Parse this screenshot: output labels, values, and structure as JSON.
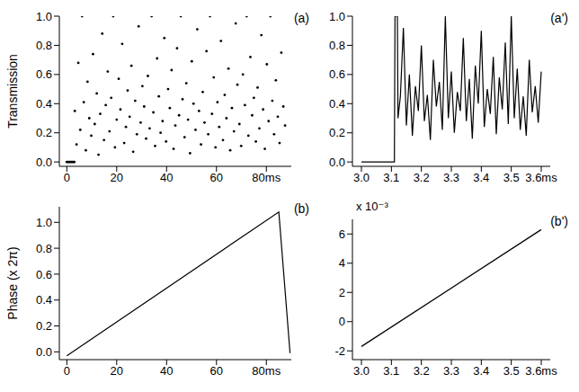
{
  "chart_data": [
    {
      "type": "scatter",
      "title": "(a)",
      "y_label": "Transmission",
      "color": "#000000",
      "marker": "dot",
      "grid": false,
      "xlim": [
        -3,
        90
      ],
      "xticks": [
        0,
        20,
        40,
        60,
        {
          "value": 80,
          "label": "80ms"
        }
      ],
      "ylim": [
        -0.03,
        1.0
      ],
      "yticks": [
        {
          "value": 0,
          "label": "0.0"
        },
        {
          "value": 0.2,
          "label": "0.2"
        },
        {
          "value": 0.4,
          "label": "0.4"
        },
        {
          "value": 0.6,
          "label": "0.6"
        },
        {
          "value": 0.8,
          "label": "0.8"
        },
        {
          "value": 1.0,
          "label": "1.0"
        }
      ],
      "x": [
        0,
        0.5,
        1,
        1.5,
        2,
        2.5,
        3,
        3.2,
        3.9,
        4.6,
        5.4,
        6.1,
        6.8,
        7.6,
        8.3,
        9.0,
        9.8,
        10.5,
        11.2,
        12.0,
        12.7,
        13.4,
        14.2,
        14.9,
        15.6,
        16.4,
        17.1,
        17.8,
        18.6,
        19.3,
        20.0,
        20.8,
        21.5,
        22.2,
        23.0,
        23.7,
        24.4,
        25.2,
        25.9,
        26.6,
        27.4,
        28.1,
        28.8,
        29.6,
        30.3,
        31.0,
        31.8,
        32.5,
        33.2,
        34.0,
        34.7,
        35.4,
        36.2,
        36.9,
        37.6,
        38.4,
        39.1,
        39.8,
        40.6,
        41.3,
        42.0,
        42.8,
        43.5,
        44.2,
        45.0,
        45.7,
        46.4,
        47.2,
        47.9,
        48.6,
        49.4,
        50.1,
        50.8,
        51.6,
        52.3,
        53.0,
        53.8,
        54.5,
        55.2,
        56.0,
        56.7,
        57.4,
        58.2,
        58.9,
        59.6,
        60.4,
        61.1,
        61.8,
        62.6,
        63.3,
        64.0,
        64.8,
        65.5,
        66.2,
        67.0,
        67.7,
        68.4,
        69.2,
        69.9,
        70.6,
        71.4,
        72.1,
        72.8,
        73.6,
        74.3,
        75.0,
        75.8,
        76.5,
        77.2,
        78.0,
        78.7,
        79.4,
        80.2,
        80.9,
        81.6,
        82.4,
        83.1,
        83.8,
        84.6,
        85.3,
        86.0,
        86.8,
        87.5
      ],
      "values": [
        0,
        0,
        0,
        0,
        0,
        0,
        0,
        0.35,
        0.12,
        0.68,
        0.22,
        1.0,
        0.41,
        0.08,
        0.55,
        0.3,
        0.18,
        0.74,
        0.26,
        0.47,
        0.05,
        0.33,
        0.88,
        0.15,
        0.39,
        0.62,
        0.21,
        0.44,
        1.0,
        0.1,
        0.29,
        0.57,
        0.36,
        0.81,
        0.13,
        0.24,
        0.49,
        0.31,
        0.66,
        0.07,
        0.42,
        0.19,
        0.93,
        0.27,
        0.52,
        0.38,
        0.16,
        0.59,
        0.23,
        1.0,
        0.34,
        0.11,
        0.71,
        0.45,
        0.2,
        0.28,
        0.85,
        0.14,
        0.5,
        0.37,
        0.63,
        0.09,
        0.25,
        0.78,
        0.32,
        1.0,
        0.43,
        0.17,
        0.54,
        0.29,
        0.06,
        0.69,
        0.4,
        0.22,
        0.91,
        0.35,
        0.12,
        0.48,
        0.27,
        0.76,
        0.19,
        1.0,
        0.33,
        0.58,
        0.1,
        0.41,
        0.24,
        0.83,
        0.15,
        0.46,
        0.3,
        0.64,
        0.08,
        0.37,
        0.21,
        0.95,
        0.53,
        0.26,
        0.11,
        0.6,
        0.39,
        1.0,
        0.18,
        0.72,
        0.32,
        0.44,
        0.14,
        0.51,
        0.23,
        0.87,
        0.36,
        0.09,
        0.67,
        0.28,
        1.0,
        0.42,
        0.19,
        0.56,
        0.31,
        0.13,
        0.75,
        0.38,
        0.25
      ]
    },
    {
      "type": "line",
      "title": "(a')",
      "color": "#000000",
      "line_style": "solid",
      "grid": false,
      "xlim": [
        2.97,
        3.63
      ],
      "xticks": [
        {
          "value": 3.0,
          "label": "3.0"
        },
        3.1,
        3.2,
        3.3,
        3.4,
        3.5,
        {
          "value": 3.6,
          "label": "3.6ms"
        }
      ],
      "ylim": [
        -0.03,
        1.0
      ],
      "yticks": [
        {
          "value": 0,
          "label": "0.0"
        },
        {
          "value": 0.2,
          "label": "0.2"
        },
        {
          "value": 0.4,
          "label": "0.4"
        },
        {
          "value": 0.6,
          "label": "0.6"
        },
        {
          "value": 0.8,
          "label": "0.8"
        },
        {
          "value": 1.0,
          "label": "1.0"
        }
      ],
      "x": [
        3.0,
        3.05,
        3.1,
        3.11,
        3.112,
        3.12,
        3.122,
        3.13,
        3.14,
        3.15,
        3.16,
        3.17,
        3.18,
        3.19,
        3.2,
        3.21,
        3.22,
        3.23,
        3.24,
        3.25,
        3.26,
        3.27,
        3.28,
        3.29,
        3.3,
        3.31,
        3.32,
        3.33,
        3.34,
        3.35,
        3.36,
        3.37,
        3.38,
        3.39,
        3.4,
        3.41,
        3.42,
        3.43,
        3.44,
        3.45,
        3.46,
        3.47,
        3.48,
        3.49,
        3.5,
        3.51,
        3.52,
        3.53,
        3.54,
        3.55,
        3.56,
        3.57,
        3.58,
        3.59,
        3.6
      ],
      "values": [
        0,
        0,
        0,
        0,
        1.0,
        1.0,
        0.3,
        0.45,
        0.92,
        0.25,
        0.6,
        0.18,
        0.52,
        0.35,
        0.8,
        0.28,
        0.46,
        0.15,
        0.7,
        0.38,
        0.55,
        0.22,
        1.0,
        0.3,
        0.62,
        0.2,
        0.48,
        0.35,
        0.85,
        0.28,
        0.57,
        0.16,
        0.66,
        0.4,
        0.9,
        0.24,
        0.5,
        0.33,
        0.72,
        0.19,
        0.58,
        0.36,
        0.82,
        0.26,
        1.0,
        0.3,
        0.64,
        0.22,
        0.45,
        0.18,
        0.7,
        0.34,
        0.52,
        0.27,
        0.62
      ]
    },
    {
      "type": "line",
      "title": "(b)",
      "y_label": "Phase (x 2π)",
      "color": "#000000",
      "line_style": "solid",
      "grid": false,
      "xlim": [
        -3,
        90
      ],
      "xticks": [
        0,
        20,
        40,
        60,
        {
          "value": 80,
          "label": "80ms"
        }
      ],
      "ylim": [
        -0.06,
        1.12
      ],
      "yticks": [
        {
          "value": 0,
          "label": "0.0"
        },
        {
          "value": 0.2,
          "label": "0.2"
        },
        {
          "value": 0.4,
          "label": "0.4"
        },
        {
          "value": 0.6,
          "label": "0.6"
        },
        {
          "value": 0.8,
          "label": "0.8"
        },
        {
          "value": 1.0,
          "label": "1.0"
        }
      ],
      "x": [
        0,
        85,
        89.5
      ],
      "values": [
        -0.03,
        1.08,
        -0.01
      ]
    },
    {
      "type": "line",
      "title": "(b')",
      "annotation": "x 10⁻³",
      "color": "#000000",
      "line_style": "solid",
      "grid": false,
      "xlim": [
        2.97,
        3.63
      ],
      "xticks": [
        {
          "value": 3.0,
          "label": "3.0"
        },
        3.1,
        3.2,
        3.3,
        3.4,
        3.5,
        {
          "value": 3.6,
          "label": "3.6ms"
        }
      ],
      "ylim": [
        -2.6,
        7
      ],
      "yticks": [
        -2,
        0,
        2,
        4,
        6
      ],
      "x": [
        3.0,
        3.6
      ],
      "values": [
        -1.7,
        6.3
      ]
    }
  ]
}
